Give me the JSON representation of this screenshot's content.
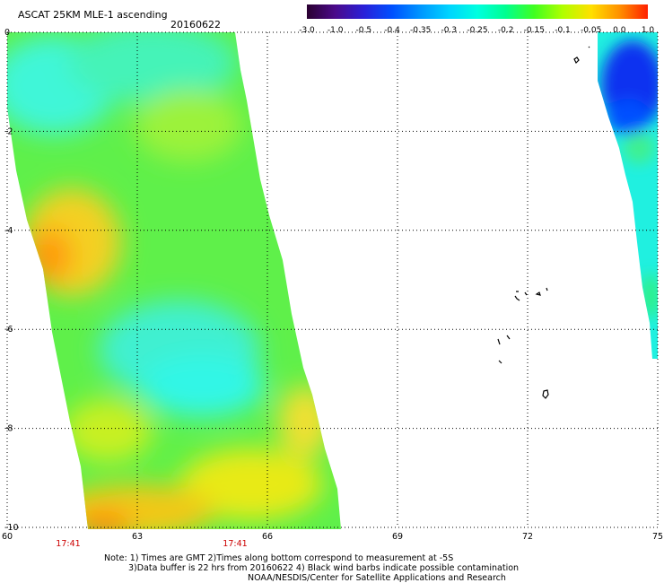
{
  "header": {
    "title": "ASCAT 25KM MLE-1 ascending",
    "date": "20160622"
  },
  "colorbar": {
    "tick_labels": [
      "-3.0",
      "-1.0",
      "-0.5",
      "-0.4",
      "-0.35",
      "-0.3",
      "-0.25",
      "-0.2",
      "-0.15",
      "-0.1",
      "-0.05",
      "0.0",
      "1.0"
    ],
    "colors": [
      "#2a0030",
      "#4b0a8a",
      "#2a20d8",
      "#0050ff",
      "#0096ff",
      "#00d4ff",
      "#00ffe0",
      "#00ff90",
      "#40ff20",
      "#b0ff00",
      "#ffe000",
      "#ff9000",
      "#ff2000"
    ]
  },
  "map": {
    "lon_range": [
      60,
      75
    ],
    "lat_range": [
      -10,
      0
    ],
    "lon_ticks": [
      "60",
      "63",
      "66",
      "69",
      "72",
      "75"
    ],
    "lat_ticks": [
      "0",
      "-2",
      "-4",
      "-6",
      "-8",
      "-10"
    ],
    "pass_times": [
      "17:41",
      "17:41"
    ],
    "time_color": "#cc0000"
  },
  "notes": {
    "line1": "Note: 1) Times are GMT 2)Times along bottom correspond to measurement at -5S",
    "line2": "3)Data buffer is 22 hrs from 20160622 4) Black wind barbs indicate possible contamination",
    "line3": "NOAA/NESDIS/Center for Satellite Applications and Research"
  }
}
